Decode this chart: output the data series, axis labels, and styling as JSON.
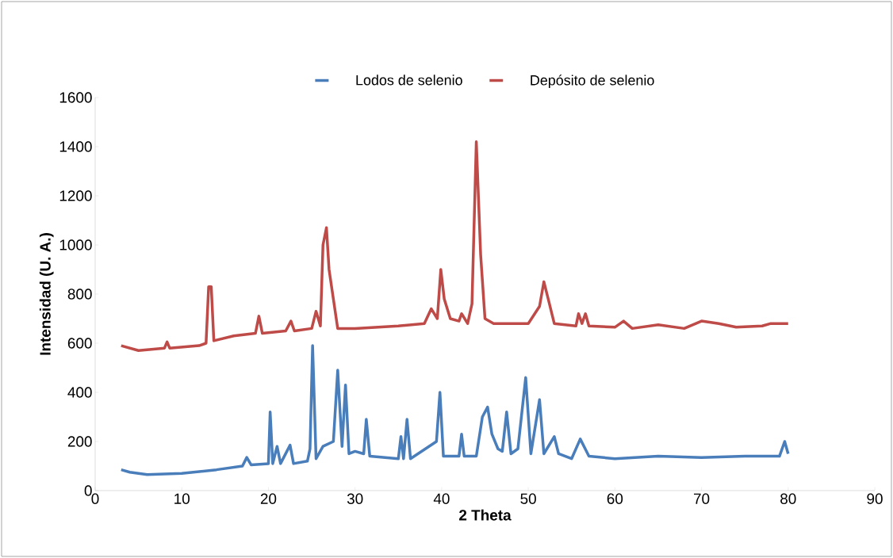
{
  "chart_data": {
    "type": "line",
    "xlabel": "2 Theta",
    "ylabel": "Intensidad  (U. A.)",
    "xlim": [
      0,
      90
    ],
    "xticks": [
      0,
      10,
      20,
      30,
      40,
      50,
      60,
      70,
      80,
      90
    ],
    "ylim": [
      0,
      1600
    ],
    "yticks": [
      0,
      200,
      400,
      600,
      800,
      1000,
      1200,
      1400,
      1600
    ],
    "grid": false,
    "legend": "top",
    "marker": "none",
    "line_style": "solid",
    "series": [
      {
        "name": "Lodos de selenio",
        "color": "#4a7ebb",
        "x": [
          3,
          4,
          6,
          10,
          14,
          17,
          17.5,
          18,
          20,
          20.2,
          20.5,
          21,
          21.4,
          22.5,
          22.9,
          24.5,
          24.8,
          25.1,
          25.5,
          26.3,
          27.5,
          28,
          28.5,
          28.9,
          29.3,
          30,
          31,
          31.3,
          31.7,
          35,
          35.3,
          35.6,
          36,
          36.4,
          39.4,
          39.8,
          40.2,
          42,
          42.3,
          42.6,
          44,
          44.7,
          45.3,
          45.8,
          46.5,
          47,
          47.5,
          48,
          48.8,
          49.7,
          50.3,
          51.3,
          51.8,
          53,
          53.5,
          55,
          56,
          57,
          60,
          65,
          70,
          75,
          79,
          79.6,
          80
        ],
        "values": [
          85,
          75,
          65,
          70,
          85,
          100,
          135,
          105,
          110,
          320,
          110,
          180,
          110,
          185,
          110,
          120,
          170,
          590,
          130,
          180,
          200,
          490,
          180,
          430,
          150,
          160,
          150,
          290,
          140,
          130,
          220,
          130,
          290,
          130,
          200,
          400,
          140,
          140,
          230,
          140,
          140,
          300,
          340,
          230,
          170,
          160,
          320,
          150,
          170,
          460,
          150,
          370,
          150,
          220,
          150,
          130,
          210,
          140,
          130,
          140,
          135,
          140,
          140,
          200,
          150
        ]
      },
      {
        "name": "Depósito de selenio",
        "color": "#be4b48",
        "x": [
          3,
          5,
          8,
          8.3,
          8.6,
          12,
          12.8,
          13.1,
          13.4,
          13.7,
          16,
          18.5,
          18.9,
          19.3,
          22,
          22.6,
          23,
          25,
          25.5,
          26,
          26.3,
          26.7,
          27,
          27.5,
          28,
          30,
          35,
          38,
          38.8,
          39.5,
          39.9,
          40.3,
          41,
          42,
          42.3,
          43,
          43.5,
          44,
          44.5,
          45,
          46,
          50,
          51.3,
          51.8,
          52.3,
          53,
          55.5,
          55.8,
          56.2,
          56.6,
          57,
          60,
          61,
          62,
          65,
          68,
          70,
          72,
          74,
          77,
          78,
          80
        ],
        "values": [
          590,
          570,
          580,
          605,
          580,
          590,
          600,
          830,
          830,
          610,
          630,
          640,
          710,
          640,
          650,
          690,
          650,
          660,
          730,
          670,
          1000,
          1070,
          900,
          780,
          660,
          660,
          670,
          680,
          740,
          700,
          900,
          780,
          700,
          690,
          720,
          680,
          760,
          1420,
          960,
          700,
          680,
          680,
          750,
          850,
          780,
          680,
          670,
          720,
          680,
          720,
          670,
          665,
          690,
          660,
          675,
          660,
          690,
          680,
          665,
          670,
          680,
          680
        ]
      }
    ]
  }
}
